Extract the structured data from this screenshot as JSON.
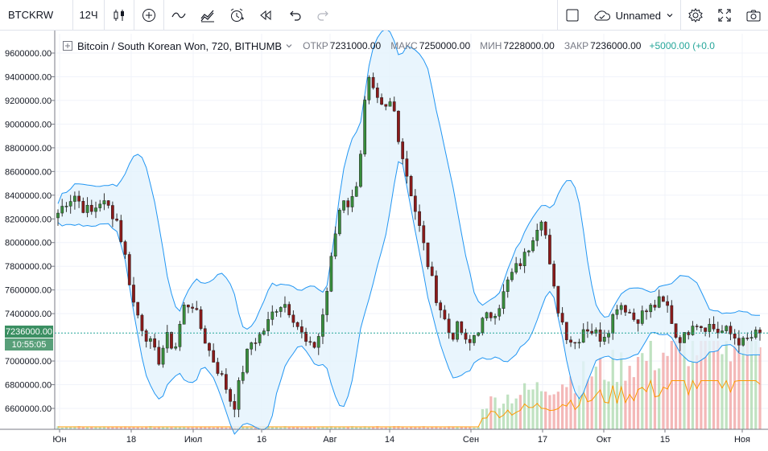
{
  "toolbar": {
    "symbol": "BTCKRW",
    "interval": "12Ч",
    "layout_name": "Unnamed",
    "icons": [
      "candles-icon",
      "add-indicator-icon",
      "compare-icon",
      "indicators-icon",
      "alert-icon",
      "replay-icon",
      "undo-icon",
      "redo-icon",
      "layout-icon",
      "cloud-icon",
      "settings-icon",
      "fullscreen-icon",
      "camera-icon"
    ]
  },
  "legend": {
    "title": "Bitcoin / South Korean Won, 720, BITHUMB",
    "open_label": "ОТКР",
    "open": "7231000.00",
    "high_label": "МАКС",
    "high": "7250000.00",
    "low_label": "МИН",
    "low": "7228000.00",
    "close_label": "ЗАКР",
    "close": "7236000.00",
    "change": "+5000.00 (+0.0"
  },
  "price_axis": {
    "ticks": [
      "9600000.00",
      "9400000.00",
      "9200000.00",
      "9000000.00",
      "8800000.00",
      "8600000.00",
      "8400000.00",
      "8200000.00",
      "8000000.00",
      "7800000.00",
      "7600000.00",
      "7400000.00",
      "7000000.00",
      "6800000.00",
      "6600000.00"
    ],
    "last_price": "7236000.00",
    "countdown": "10:55:05"
  },
  "time_axis": {
    "ticks": [
      "Юн",
      "18",
      "Июл",
      "16",
      "Авг",
      "14",
      "Сен",
      "17",
      "Окт",
      "15",
      "Ноя"
    ]
  },
  "colors": {
    "up": "#26a69a",
    "down": "#ef5350",
    "candle_up": "#388e3c",
    "candle_down": "#8b1a1a",
    "band": "#2196f3",
    "band_fill": "#e3f2fd",
    "ma": "#ff9800"
  },
  "chart_data": {
    "type": "candlestick",
    "title": "Bitcoin / South Korean Won, 720, BITHUMB",
    "ylim": [
      6500000,
      9700000
    ],
    "x_range": [
      "Юн",
      "Ноя"
    ],
    "close_path": [
      8250000,
      8350000,
      8400000,
      8300000,
      8250000,
      8350000,
      8300000,
      8200000,
      7900000,
      7500000,
      7300000,
      7150000,
      7000000,
      7200000,
      7100000,
      7450000,
      7500000,
      7300000,
      7100000,
      6950000,
      6800000,
      6600000,
      6900000,
      7150000,
      7200000,
      7300000,
      7450000,
      7500000,
      7400000,
      7250000,
      7100000,
      7150000,
      7500000,
      8000000,
      8400000,
      8300000,
      8600000,
      9400000,
      9200000,
      9100000,
      9200000,
      8800000,
      8500000,
      8200000,
      7900000,
      7600000,
      7400000,
      7200000,
      7300000,
      7100000,
      7250000,
      7350000,
      7400000,
      7500000,
      7700000,
      7800000,
      7900000,
      8100000,
      8250000,
      7700000,
      7400000,
      7200000,
      7150000,
      7300000,
      7250000,
      7200000,
      7300000,
      7500000,
      7450000,
      7350000,
      7400000,
      7450000,
      7500000,
      7450000,
      7200000,
      7200000,
      7350000,
      7300000,
      7300000,
      7250000,
      7250000,
      7200000,
      7150000,
      7200000,
      7236000
    ]
  }
}
